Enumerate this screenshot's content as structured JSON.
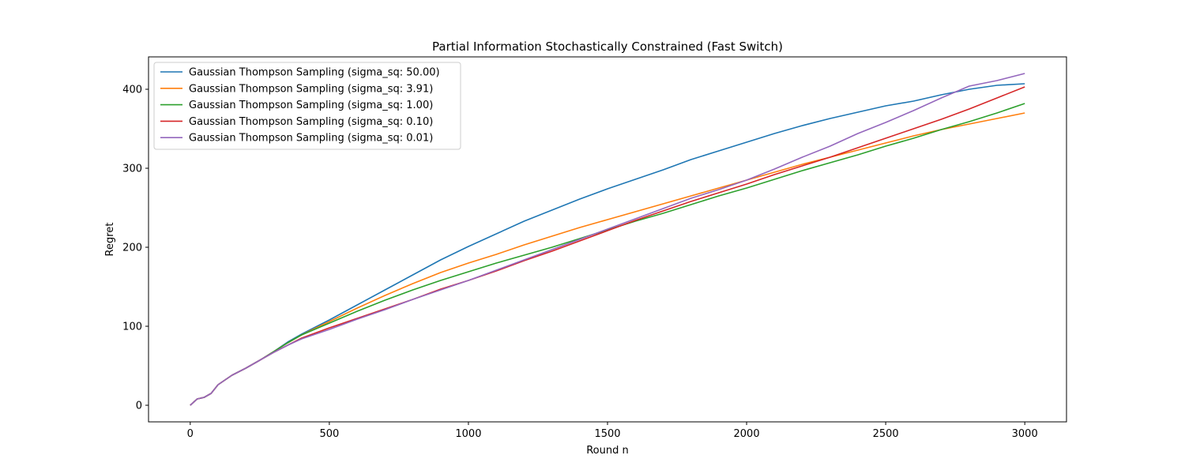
{
  "chart_data": {
    "type": "line",
    "title": "Partial Information Stochastically Constrained (Fast Switch)",
    "xlabel": "Round n",
    "ylabel": "Regret",
    "xlim": [
      -150,
      3150
    ],
    "ylim": [
      -21,
      441
    ],
    "xticks": [
      0,
      500,
      1000,
      1500,
      2000,
      2500,
      3000
    ],
    "yticks": [
      0,
      100,
      200,
      300,
      400
    ],
    "grid": false,
    "legend_position": "upper-left",
    "x": [
      0,
      25,
      50,
      75,
      100,
      150,
      200,
      250,
      300,
      350,
      400,
      500,
      600,
      700,
      800,
      900,
      1000,
      1100,
      1200,
      1300,
      1400,
      1500,
      1600,
      1700,
      1800,
      1900,
      2000,
      2100,
      2200,
      2300,
      2400,
      2500,
      2600,
      2700,
      2800,
      2900,
      3000
    ],
    "series": [
      {
        "name": "Gaussian Thompson Sampling (sigma_sq: 50.00)",
        "color": "#1f77b4",
        "values": [
          0,
          8,
          10,
          15,
          26,
          38,
          47,
          57,
          68,
          80,
          90,
          108,
          127,
          146,
          165,
          184,
          201,
          217,
          233,
          247,
          261,
          274,
          286,
          298,
          311,
          322,
          333,
          344,
          354,
          363,
          371,
          379,
          385,
          393,
          400,
          405,
          407
        ]
      },
      {
        "name": "Gaussian Thompson Sampling (sigma_sq: 3.91)",
        "color": "#ff7f0e",
        "values": [
          0,
          8,
          10,
          15,
          26,
          38,
          47,
          57,
          68,
          79,
          89,
          106,
          123,
          139,
          154,
          168,
          180,
          191,
          203,
          214,
          225,
          235,
          245,
          255,
          265,
          275,
          285,
          295,
          305,
          314,
          323,
          332,
          341,
          349,
          356,
          363,
          370
        ]
      },
      {
        "name": "Gaussian Thompson Sampling (sigma_sq: 1.00)",
        "color": "#2ca02c",
        "values": [
          0,
          8,
          10,
          15,
          26,
          38,
          47,
          57,
          68,
          79,
          89,
          104,
          119,
          133,
          146,
          158,
          169,
          180,
          190,
          200,
          211,
          222,
          233,
          243,
          254,
          265,
          275,
          286,
          297,
          307,
          317,
          328,
          338,
          349,
          359,
          370,
          382
        ]
      },
      {
        "name": "Gaussian Thompson Sampling (sigma_sq: 0.10)",
        "color": "#d62728",
        "values": [
          0,
          8,
          10,
          15,
          26,
          38,
          47,
          57,
          67,
          76,
          85,
          98,
          110,
          122,
          134,
          147,
          158,
          170,
          183,
          195,
          208,
          221,
          234,
          246,
          258,
          269,
          280,
          292,
          303,
          314,
          326,
          338,
          350,
          362,
          375,
          389,
          403
        ]
      },
      {
        "name": "Gaussian Thompson Sampling (sigma_sq: 0.01)",
        "color": "#9467bd",
        "values": [
          0,
          8,
          10,
          15,
          26,
          38,
          47,
          57,
          67,
          76,
          84,
          96,
          109,
          121,
          134,
          146,
          158,
          171,
          184,
          197,
          210,
          223,
          236,
          249,
          262,
          273,
          285,
          299,
          314,
          328,
          344,
          358,
          373,
          389,
          404,
          411,
          420
        ]
      }
    ]
  }
}
